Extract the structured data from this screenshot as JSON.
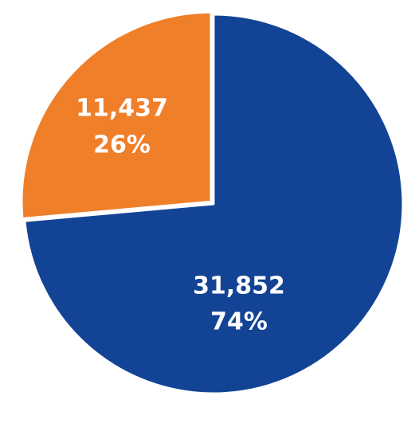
{
  "chart_data": {
    "type": "pie",
    "categories": [
      null,
      null
    ],
    "values": [
      31852,
      11437
    ],
    "value_labels": [
      "31,852",
      "11,437"
    ],
    "percentages": [
      74,
      26
    ],
    "percentage_labels": [
      "74%",
      "26%"
    ],
    "colors": [
      "#134395",
      "#f07f2a"
    ]
  }
}
